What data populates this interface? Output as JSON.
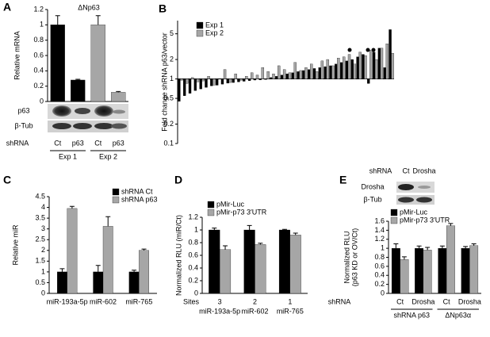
{
  "chart_data": [
    {
      "type": "bar",
      "panel": "A",
      "title": "ΔNp63",
      "ylabel": "Relative mRNA",
      "categories": [
        "Ct",
        "p63",
        "Ct",
        "p63"
      ],
      "category_axis_label": "shRNA",
      "groups": [
        "Exp 1",
        "Exp 2"
      ],
      "values": [
        1.0,
        0.28,
        1.0,
        0.12
      ],
      "errors": [
        0.12,
        0.01,
        0.12,
        0.01
      ],
      "colors": [
        "#000000",
        "#000000",
        "#a6a6a6",
        "#a6a6a6"
      ],
      "blot_labels": [
        "p63",
        "β-Tub"
      ],
      "ylim": [
        0,
        1.2
      ],
      "yticks": [
        0,
        0.2,
        0.4,
        0.6,
        0.8,
        1,
        1.2
      ]
    },
    {
      "type": "bar",
      "panel": "B",
      "ylabel": "Fold change shRNA p63/vector",
      "log_scale": true,
      "baseline": 1,
      "series": [
        {
          "name": "Exp 1",
          "color": "#000000",
          "values": [
            0.45,
            0.55,
            0.6,
            0.66,
            0.7,
            0.74,
            0.78,
            0.8,
            0.83,
            0.86,
            0.88,
            0.9,
            0.92,
            0.94,
            0.96,
            0.97,
            0.98,
            1.05,
            1.1,
            1.15,
            1.2,
            1.25,
            1.3,
            1.35,
            1.4,
            1.45,
            1.5,
            1.55,
            1.6,
            1.7,
            1.8,
            1.9,
            2.0,
            2.2,
            2.4,
            0.85,
            2.6,
            3.0,
            1.5,
            5.8
          ]
        },
        {
          "name": "Exp 2",
          "color": "#a6a6a6",
          "values": [
            0.95,
            0.85,
            1.05,
            0.9,
            0.93,
            1.1,
            0.8,
            1.0,
            1.4,
            0.88,
            1.2,
            0.95,
            1.1,
            1.25,
            1.15,
            1.5,
            1.3,
            1.2,
            1.6,
            1.4,
            1.25,
            1.8,
            1.35,
            1.5,
            1.7,
            1.3,
            1.9,
            2.0,
            1.6,
            2.1,
            2.2,
            2.4,
            1.7,
            2.6,
            2.3,
            2.8,
            2.0,
            3.0,
            3.5,
            2.5
          ]
        }
      ],
      "ylim": [
        0.1,
        8
      ],
      "yticks": [
        0.1,
        0.2,
        0.5,
        1,
        2,
        5
      ],
      "legend": "top-left"
    },
    {
      "type": "bar",
      "panel": "C",
      "ylabel": "Relative miR",
      "categories": [
        "miR-193a-5p",
        "miR-602",
        "miR-765"
      ],
      "series": [
        {
          "name": "shRNA Ct",
          "color": "#000000",
          "values": [
            1,
            1,
            1
          ],
          "errors": [
            0.15,
            0.3,
            0.08
          ]
        },
        {
          "name": "shRNA p63",
          "color": "#a6a6a6",
          "values": [
            3.95,
            3.12,
            2.0
          ],
          "errors": [
            0.1,
            0.45,
            0.06
          ]
        }
      ],
      "ylim": [
        0,
        4.5
      ],
      "yticks": [
        0,
        0.5,
        1,
        1.5,
        2,
        2.5,
        3,
        3.5,
        4,
        4.5
      ],
      "legend": "top-right"
    },
    {
      "type": "bar",
      "panel": "D",
      "ylabel": "Normalized RLU (miR/Ct)",
      "categories": [
        "miR-193a-5p",
        "miR-602",
        "miR-765"
      ],
      "sites_label": "Sites",
      "sites": [
        3,
        2,
        1
      ],
      "series": [
        {
          "name": "pMir-Luc",
          "color": "#000000",
          "values": [
            1.0,
            1.0,
            1.0
          ],
          "errors": [
            0.03,
            0.07,
            0.01
          ]
        },
        {
          "name": "pMir-p73 3′UTR",
          "color": "#a6a6a6",
          "values": [
            0.69,
            0.77,
            0.92
          ],
          "errors": [
            0.06,
            0.02,
            0.03
          ]
        }
      ],
      "ylim": [
        0,
        1.2
      ],
      "yticks": [
        0,
        0.2,
        0.4,
        0.6,
        0.8,
        1,
        1.2
      ],
      "legend": "top-left"
    },
    {
      "type": "bar",
      "panel": "E",
      "ylabel": [
        "Normalized RLU",
        "(p63 KD or OV/Ct)"
      ],
      "categories": [
        "Ct",
        "Drosha",
        "Ct",
        "Drosha"
      ],
      "category_axis_label": "shRNA",
      "groups": [
        "shRNA p63",
        "ΔNp63α"
      ],
      "blot_header": "shRNA",
      "blot_lanes": [
        "Ct",
        "Drosha"
      ],
      "blot_labels": [
        "Drosha",
        "β-Tub"
      ],
      "series": [
        {
          "name": "pMir-Luc",
          "color": "#000000",
          "values": [
            1.0,
            1.0,
            1.0,
            1.0
          ],
          "errors": [
            0.1,
            0.05,
            0.05,
            0.04
          ]
        },
        {
          "name": "pMir-p73 3′UTR",
          "color": "#a6a6a6",
          "values": [
            0.75,
            0.96,
            1.5,
            1.06
          ],
          "errors": [
            0.06,
            0.06,
            0.05,
            0.04
          ]
        }
      ],
      "ylim": [
        0,
        1.6
      ],
      "yticks": [
        0,
        0.2,
        0.4,
        0.6,
        0.8,
        1,
        1.2,
        1.4,
        1.6
      ],
      "legend": "top-left"
    }
  ]
}
